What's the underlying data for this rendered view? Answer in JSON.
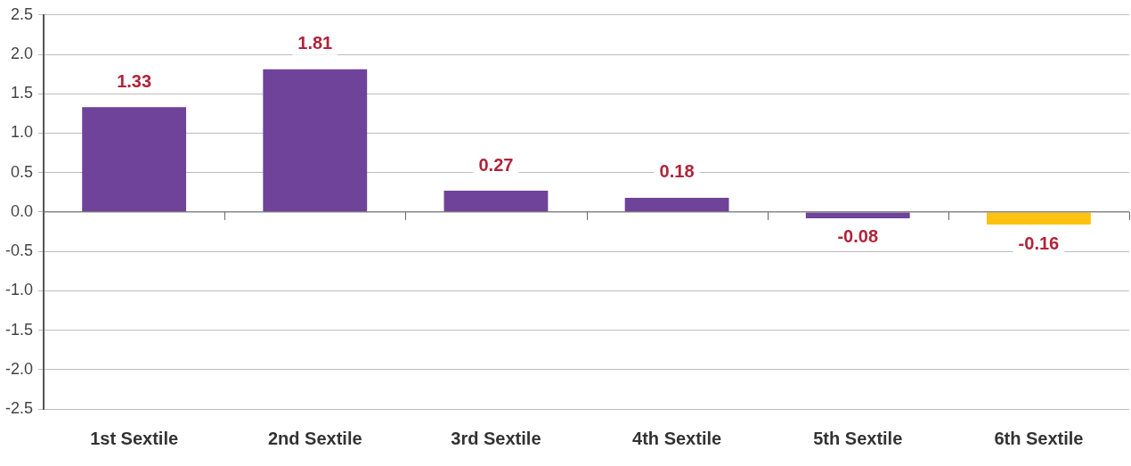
{
  "chart_data": {
    "type": "bar",
    "categories": [
      "1st Sextile",
      "2nd Sextile",
      "3rd Sextile",
      "4th Sextile",
      "5th Sextile",
      "6th Sextile"
    ],
    "values": [
      1.33,
      1.81,
      0.27,
      0.18,
      -0.08,
      -0.16
    ],
    "colors": [
      "#6f4399",
      "#6f4399",
      "#6f4399",
      "#6f4399",
      "#6f4399",
      "#ffc20e"
    ],
    "ylim": [
      -2.5,
      2.5
    ],
    "yticks": [
      {
        "value": -2.5,
        "label": "-2.5"
      },
      {
        "value": -2,
        "label": "-2.0"
      },
      {
        "value": -1.5,
        "label": "-1.5"
      },
      {
        "value": -1,
        "label": "-1.0"
      },
      {
        "value": -0.5,
        "label": "-0.5"
      },
      {
        "value": 0,
        "label": "0.0"
      },
      {
        "value": 0.5,
        "label": "0.5"
      },
      {
        "value": 1,
        "label": "1.0"
      },
      {
        "value": 1.5,
        "label": "1.5"
      },
      {
        "value": 2,
        "label": "2.0"
      },
      {
        "value": 2.5,
        "label": "2.5"
      }
    ],
    "grid": "y",
    "data_labels": true
  }
}
